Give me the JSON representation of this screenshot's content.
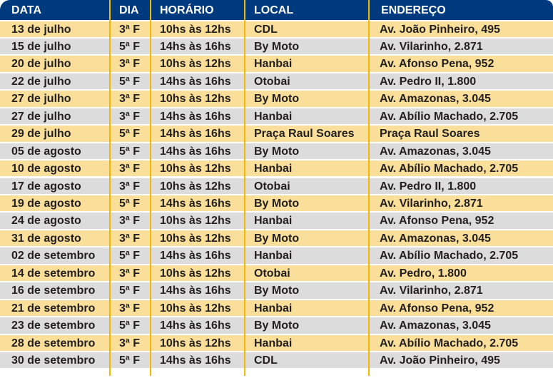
{
  "headers": [
    "DATA",
    "DIA",
    "HORÁRIO",
    "LOCAL",
    "ENDEREÇO"
  ],
  "colors": {
    "header": "#003a7e",
    "row_odd": "#fadf9a",
    "row_even": "#dcdcdd",
    "divider": "#f5b800"
  },
  "rows": [
    [
      "13 de julho",
      "3ª F",
      "10hs às 12hs",
      "CDL",
      "Av. João Pinheiro, 495"
    ],
    [
      "15 de julho",
      "5ª F",
      "14hs às 16hs",
      "By Moto",
      "Av. Vilarinho, 2.871"
    ],
    [
      "20 de julho",
      "3ª F",
      "10hs às 12hs",
      "Hanbai",
      "Av. Afonso Pena, 952"
    ],
    [
      "22 de julho",
      "5ª F",
      "14hs às 16hs",
      "Otobai",
      "Av. Pedro II, 1.800"
    ],
    [
      "27 de julho",
      "3ª F",
      "10hs às 12hs",
      "By Moto",
      "Av. Amazonas, 3.045"
    ],
    [
      "27 de julho",
      "3ª F",
      "14hs às 16hs",
      "Hanbai",
      "Av. Abílio Machado, 2.705"
    ],
    [
      "29 de julho",
      "5ª F",
      "14hs às 16hs",
      "Praça Raul Soares",
      "Praça Raul Soares"
    ],
    [
      "05 de agosto",
      "5ª F",
      "14hs às 16hs",
      "By Moto",
      "Av. Amazonas, 3.045"
    ],
    [
      "10 de agosto",
      "3ª F",
      "10hs às 12hs",
      "Hanbai",
      "Av. Abílio Machado, 2.705"
    ],
    [
      "17 de agosto",
      "3ª F",
      "10hs às 12hs",
      "Otobai",
      "Av. Pedro II, 1.800"
    ],
    [
      "19 de agosto",
      "5ª F",
      "14hs às 16hs",
      "By Moto",
      "Av. Vilarinho, 2.871"
    ],
    [
      "24 de agosto",
      "3ª F",
      "10hs às 12hs",
      "Hanbai",
      "Av. Afonso Pena, 952"
    ],
    [
      "31 de agosto",
      "3ª F",
      "10hs às 12hs",
      "By Moto",
      "Av. Amazonas, 3.045"
    ],
    [
      "02 de setembro",
      "5ª F",
      "14hs às 16hs",
      "Hanbai",
      "Av. Abílio Machado, 2.705"
    ],
    [
      "14 de setembro",
      "3ª F",
      "10hs às 12hs",
      "Otobai",
      "Av. Pedro, 1.800"
    ],
    [
      "16 de setembro",
      "5ª F",
      "14hs às 16hs",
      "By Moto",
      "Av. Vilarinho, 2.871"
    ],
    [
      "21 de setembro",
      "3ª F",
      "10hs às 12hs",
      "Hanbai",
      "Av. Afonso Pena, 952"
    ],
    [
      "23 de setembro",
      "5ª F",
      "14hs às 16hs",
      "By Moto",
      "Av. Amazonas, 3.045"
    ],
    [
      "28 de setembro",
      "3ª F",
      "10hs às 12hs",
      "Hanbai",
      "Av. Abílio Machado, 2.705"
    ],
    [
      "30 de setembro",
      "5ª F",
      "14hs às 16hs",
      "CDL",
      "Av. João Pinheiro, 495"
    ]
  ]
}
